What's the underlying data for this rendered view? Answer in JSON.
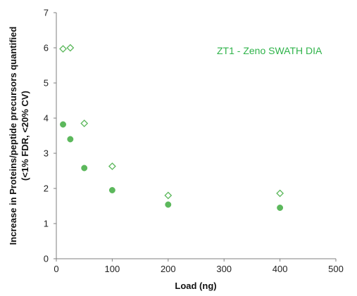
{
  "chart_data": {
    "type": "scatter",
    "xlabel": "Load (ng)",
    "ylabel_lines": [
      "Increase in Proteins/peptide precursors quantified",
      "(<1% FDR, <20% CV)"
    ],
    "xlim": [
      0,
      500
    ],
    "ylim": [
      0,
      7
    ],
    "x_ticks": [
      0,
      100,
      200,
      300,
      400,
      500
    ],
    "y_ticks": [
      0,
      1,
      2,
      3,
      4,
      5,
      6,
      7
    ],
    "grid": false,
    "annotation": "ZT1 - Zeno SWATH DIA",
    "annotation_color": "#2fb34a",
    "marker_color": "#5cb85c",
    "series": [
      {
        "marker": "filled-circle",
        "points": [
          {
            "x": 12,
            "y": 3.82
          },
          {
            "x": 25,
            "y": 3.4
          },
          {
            "x": 50,
            "y": 2.58
          },
          {
            "x": 100,
            "y": 1.95
          },
          {
            "x": 200,
            "y": 1.54
          },
          {
            "x": 400,
            "y": 1.45
          }
        ]
      },
      {
        "marker": "open-diamond",
        "points": [
          {
            "x": 12,
            "y": 5.97
          },
          {
            "x": 25,
            "y": 6.0
          },
          {
            "x": 50,
            "y": 3.85
          },
          {
            "x": 100,
            "y": 2.63
          },
          {
            "x": 200,
            "y": 1.8
          },
          {
            "x": 400,
            "y": 1.86
          }
        ]
      }
    ]
  }
}
